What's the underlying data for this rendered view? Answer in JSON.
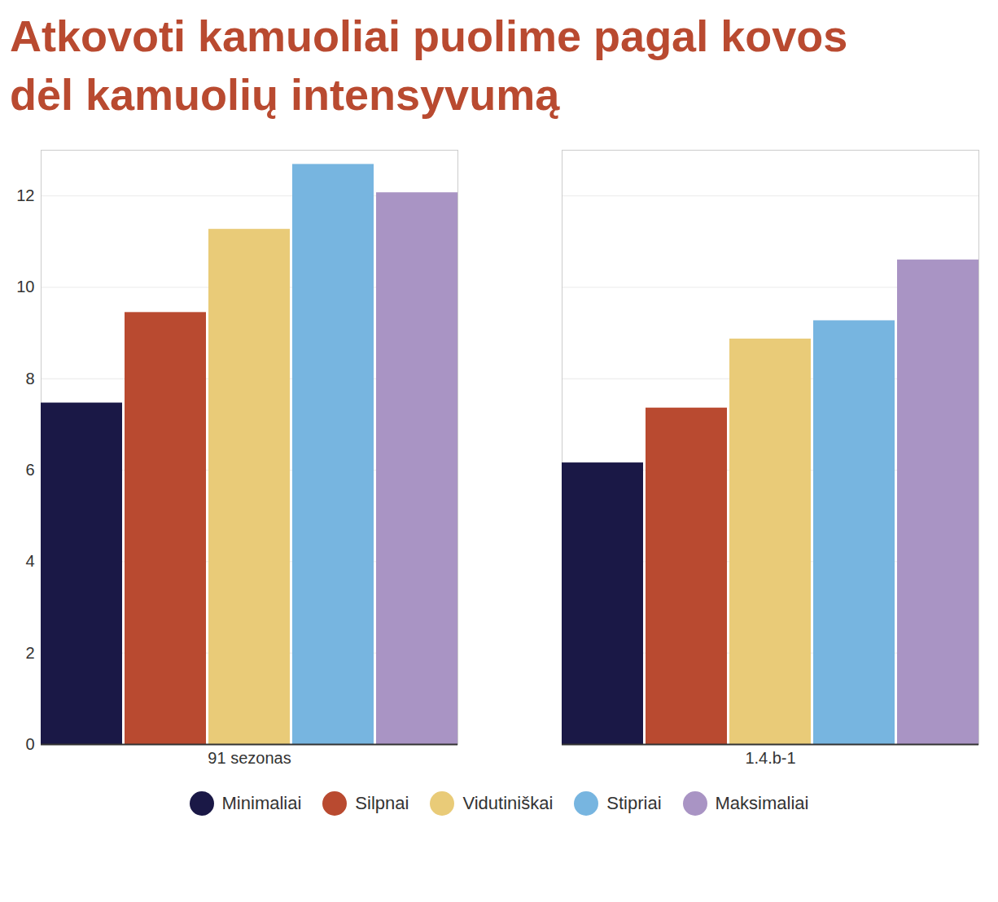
{
  "chart_data": {
    "type": "bar",
    "title": "Atkovoti kamuoliai puolime pagal kovos dėl kamuolių intensyvumą",
    "categories": [
      "91 sezonas",
      "1.4.b-1"
    ],
    "series": [
      {
        "name": "Minimaliai",
        "color": "#1a1846",
        "values": [
          7.47,
          6.16
        ]
      },
      {
        "name": "Silpnai",
        "color": "#b94a30",
        "values": [
          9.45,
          7.36
        ]
      },
      {
        "name": "Vidutiniškai",
        "color": "#e9cb78",
        "values": [
          11.27,
          8.87
        ]
      },
      {
        "name": "Stipriai",
        "color": "#77b5e0",
        "values": [
          12.69,
          9.27
        ]
      },
      {
        "name": "Maksimaliai",
        "color": "#a994c4",
        "values": [
          12.07,
          10.6
        ]
      }
    ],
    "ylim": [
      0,
      13
    ],
    "yticks": [
      0,
      2,
      4,
      6,
      8,
      10,
      12
    ],
    "grid": true,
    "legend": "bottom"
  }
}
